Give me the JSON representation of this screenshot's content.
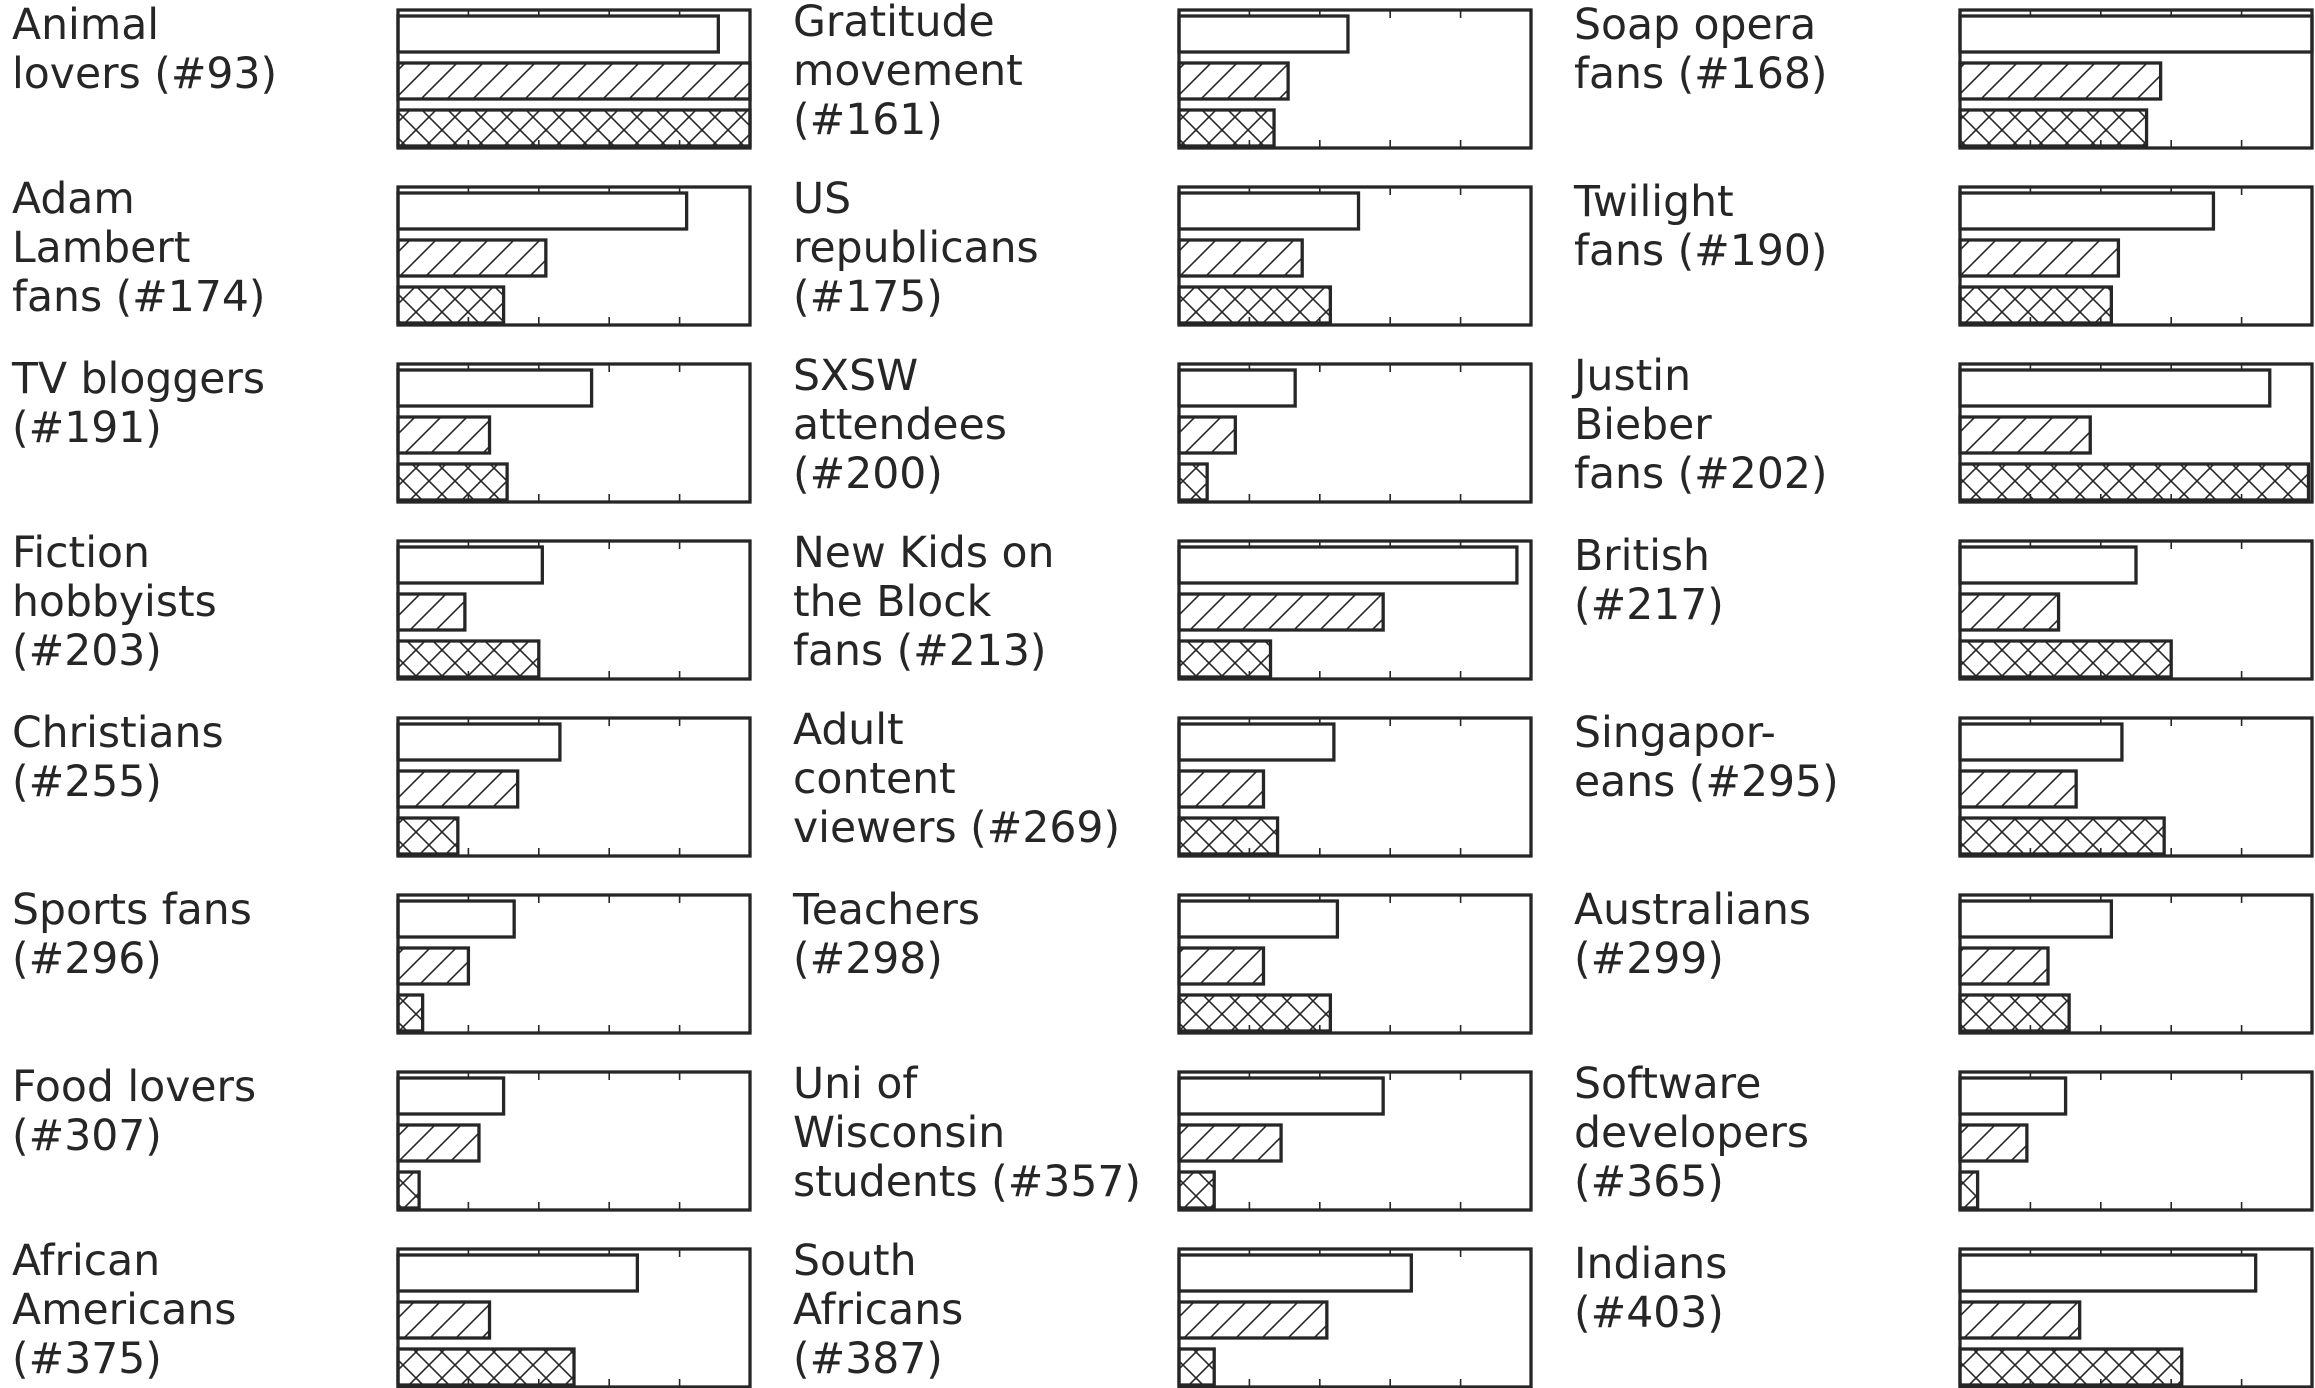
{
  "chart_data": {
    "type": "bar",
    "orientation": "horizontal",
    "layout": "small-multiples-grid",
    "grid_columns": 3,
    "grid_rows": 8,
    "xlim": [
      0,
      1
    ],
    "x_ticks": [
      0.2,
      0.4,
      0.6,
      0.8
    ],
    "tick_labels_shown": false,
    "grid": false,
    "legend": "none",
    "bar_fills": [
      "empty",
      "diagonal-hatch",
      "cross-hatch"
    ],
    "colors": {
      "ink": "#262626",
      "background": "#ffffff"
    },
    "panels": [
      {
        "label_lines": [
          "Animal",
          "lovers (#93)"
        ],
        "values": [
          0.91,
          1.0,
          1.0
        ]
      },
      {
        "label_lines": [
          "Gratitude",
          "movement",
          "(#161)"
        ],
        "values": [
          0.48,
          0.31,
          0.27
        ]
      },
      {
        "label_lines": [
          "Soap opera",
          "fans (#168)"
        ],
        "values": [
          1.0,
          0.57,
          0.53
        ]
      },
      {
        "label_lines": [
          "Adam",
          "Lambert",
          "fans (#174)"
        ],
        "values": [
          0.82,
          0.42,
          0.3
        ]
      },
      {
        "label_lines": [
          "US",
          "republicans",
          "(#175)"
        ],
        "values": [
          0.51,
          0.35,
          0.43
        ]
      },
      {
        "label_lines": [
          "Twilight",
          "fans (#190)"
        ],
        "values": [
          0.72,
          0.45,
          0.43
        ]
      },
      {
        "label_lines": [
          "TV bloggers",
          "(#191)"
        ],
        "values": [
          0.55,
          0.26,
          0.31
        ]
      },
      {
        "label_lines": [
          "SXSW",
          "attendees",
          "(#200)"
        ],
        "values": [
          0.33,
          0.16,
          0.08
        ]
      },
      {
        "label_lines": [
          "Justin",
          "Bieber",
          "fans (#202)"
        ],
        "values": [
          0.88,
          0.37,
          0.99
        ]
      },
      {
        "label_lines": [
          "Fiction",
          "hobbyists",
          "(#203)"
        ],
        "values": [
          0.41,
          0.19,
          0.4
        ]
      },
      {
        "label_lines": [
          "New Kids on",
          "the Block",
          "fans (#213)"
        ],
        "values": [
          0.96,
          0.58,
          0.26
        ]
      },
      {
        "label_lines": [
          "British",
          "(#217)"
        ],
        "values": [
          0.5,
          0.28,
          0.6
        ]
      },
      {
        "label_lines": [
          "Christians",
          "(#255)"
        ],
        "values": [
          0.46,
          0.34,
          0.17
        ]
      },
      {
        "label_lines": [
          "Adult",
          "content",
          "viewers (#269)"
        ],
        "values": [
          0.44,
          0.24,
          0.28
        ]
      },
      {
        "label_lines": [
          "Singapor-",
          "eans (#295)"
        ],
        "values": [
          0.46,
          0.33,
          0.58
        ]
      },
      {
        "label_lines": [
          "Sports fans",
          "(#296)"
        ],
        "values": [
          0.33,
          0.2,
          0.07
        ]
      },
      {
        "label_lines": [
          "Teachers",
          "(#298)"
        ],
        "values": [
          0.45,
          0.24,
          0.43
        ]
      },
      {
        "label_lines": [
          "Australians",
          "(#299)"
        ],
        "values": [
          0.43,
          0.25,
          0.31
        ]
      },
      {
        "label_lines": [
          "Food lovers",
          "(#307)"
        ],
        "values": [
          0.3,
          0.23,
          0.06
        ]
      },
      {
        "label_lines": [
          "Uni of",
          "Wisconsin",
          "students (#357)"
        ],
        "values": [
          0.58,
          0.29,
          0.1
        ]
      },
      {
        "label_lines": [
          "Software",
          "developers",
          "(#365)"
        ],
        "values": [
          0.3,
          0.19,
          0.05
        ]
      },
      {
        "label_lines": [
          "African",
          "Americans",
          "(#375)"
        ],
        "values": [
          0.68,
          0.26,
          0.5
        ]
      },
      {
        "label_lines": [
          "South",
          "Africans",
          "(#387)"
        ],
        "values": [
          0.66,
          0.42,
          0.1
        ]
      },
      {
        "label_lines": [
          "Indians",
          "(#403)"
        ],
        "values": [
          0.84,
          0.34,
          0.63
        ]
      }
    ]
  }
}
